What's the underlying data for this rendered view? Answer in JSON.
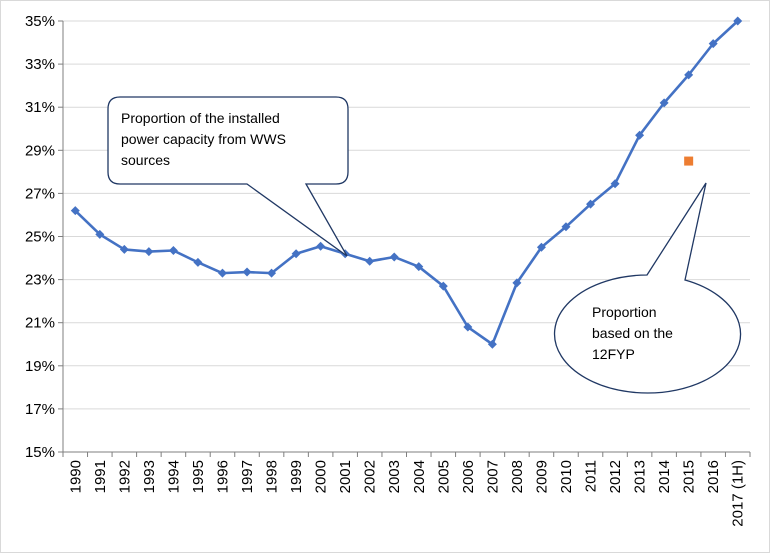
{
  "chart_data": {
    "type": "line",
    "x": [
      "1990",
      "1991",
      "1992",
      "1993",
      "1994",
      "1995",
      "1996",
      "1997",
      "1998",
      "1999",
      "2000",
      "2001",
      "2002",
      "2003",
      "2004",
      "2005",
      "2006",
      "2007",
      "2008",
      "2009",
      "2010",
      "2011",
      "2012",
      "2013",
      "2014",
      "2015",
      "2016",
      "2017 (1H)"
    ],
    "series": [
      {
        "values": [
          26.2,
          25.1,
          24.4,
          24.3,
          24.35,
          23.8,
          23.3,
          23.35,
          23.3,
          24.2,
          24.55,
          24.2,
          23.85,
          24.05,
          23.6,
          22.7,
          20.8,
          20.0,
          22.85,
          24.5,
          25.45,
          26.5,
          27.45,
          29.7,
          31.2,
          32.5,
          33.95,
          35.0
        ],
        "color": "#4472c4",
        "marker": "diamond"
      },
      {
        "points": [
          {
            "x": "2015",
            "y": 28.5
          }
        ],
        "color": "#ed7d31",
        "marker": "square"
      }
    ],
    "yticks": [
      "15%",
      "17%",
      "19%",
      "21%",
      "23%",
      "25%",
      "27%",
      "29%",
      "31%",
      "33%",
      "35%"
    ],
    "ylim": [
      15,
      35
    ],
    "grid": true,
    "annotations": [
      {
        "text": "Proportion of the installed power capacity from WWS sources",
        "lines": [
          "Proportion of the installed",
          "power capacity from WWS",
          "sources"
        ]
      },
      {
        "text": "Proportion based on the 12FYP",
        "lines": [
          "Proportion",
          "based on the",
          "12FYP"
        ]
      }
    ],
    "colors": {
      "grid": "#d9d9d9",
      "axis": "#7f7f7f",
      "callout_border": "#203864",
      "line": "#4472c4",
      "marker_alt": "#ed7d31"
    }
  }
}
